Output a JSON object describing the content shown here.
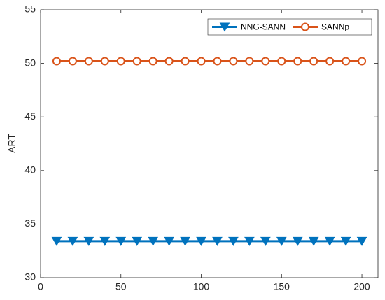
{
  "chart_data": {
    "type": "line",
    "y_label": "ART",
    "x": [
      10,
      20,
      30,
      40,
      50,
      60,
      70,
      80,
      90,
      100,
      110,
      120,
      130,
      140,
      150,
      160,
      170,
      180,
      190,
      200
    ],
    "series": [
      {
        "name": "NNG-SANN",
        "color": "#0072BD",
        "marker": "triangle-down",
        "values": [
          33.4,
          33.4,
          33.4,
          33.4,
          33.4,
          33.4,
          33.4,
          33.4,
          33.4,
          33.4,
          33.4,
          33.4,
          33.4,
          33.4,
          33.4,
          33.4,
          33.4,
          33.4,
          33.4,
          33.4
        ]
      },
      {
        "name": "SANNp",
        "color": "#D95319",
        "marker": "circle",
        "values": [
          50.2,
          50.2,
          50.2,
          50.2,
          50.2,
          50.2,
          50.2,
          50.2,
          50.2,
          50.2,
          50.2,
          50.2,
          50.2,
          50.2,
          50.2,
          50.2,
          50.2,
          50.2,
          50.2,
          50.2
        ]
      }
    ],
    "xlim": [
      0,
      210
    ],
    "xticks": [
      0,
      50,
      100,
      150,
      200
    ],
    "ylim": [
      30,
      55
    ],
    "yticks": [
      30,
      35,
      40,
      45,
      50,
      55
    ],
    "legend": "top-right",
    "grid": false
  }
}
